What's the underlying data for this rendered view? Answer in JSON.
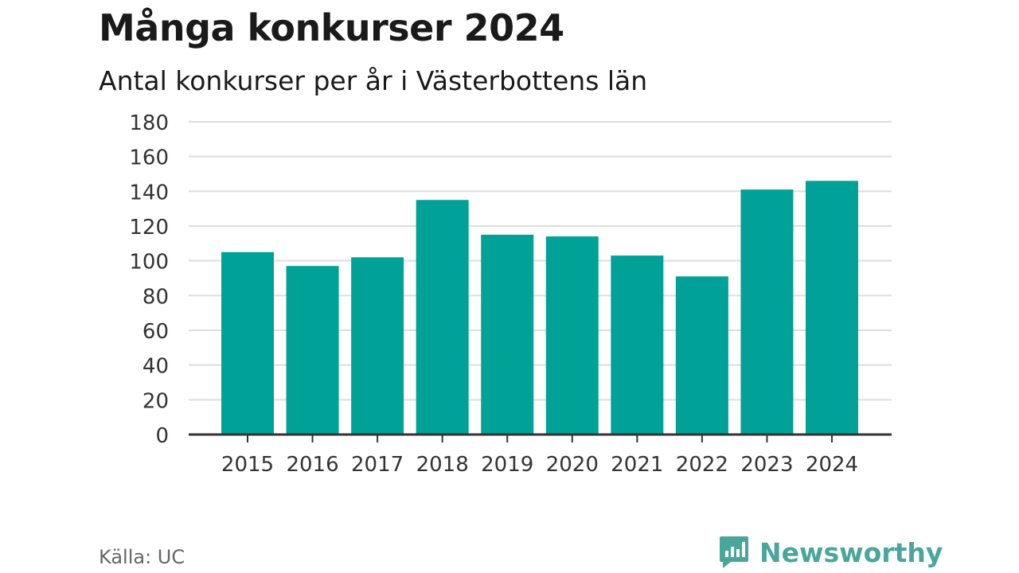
{
  "title": "Många konkurser 2024",
  "subtitle": "Antal konkurser per år i Västerbottens län",
  "source": "Källa: UC",
  "brand": {
    "name": "Newsworthy",
    "icon": "newsworthy-logo-icon",
    "color": "#4aa59b"
  },
  "colors": {
    "bar": "#00a297",
    "grid": "#dddddd",
    "axis": "#333333",
    "tick_text": "#333333"
  },
  "chart_data": {
    "type": "bar",
    "title": "Många konkurser 2024",
    "subtitle": "Antal konkurser per år i Västerbottens län",
    "xlabel": "",
    "ylabel": "",
    "categories": [
      "2015",
      "2016",
      "2017",
      "2018",
      "2019",
      "2020",
      "2021",
      "2022",
      "2023",
      "2024"
    ],
    "values": [
      105,
      97,
      102,
      135,
      115,
      114,
      103,
      91,
      141,
      146
    ],
    "ylim": [
      0,
      180
    ],
    "yticks": [
      0,
      20,
      40,
      60,
      80,
      100,
      120,
      140,
      160,
      180
    ],
    "grid": true,
    "legend": "none"
  }
}
